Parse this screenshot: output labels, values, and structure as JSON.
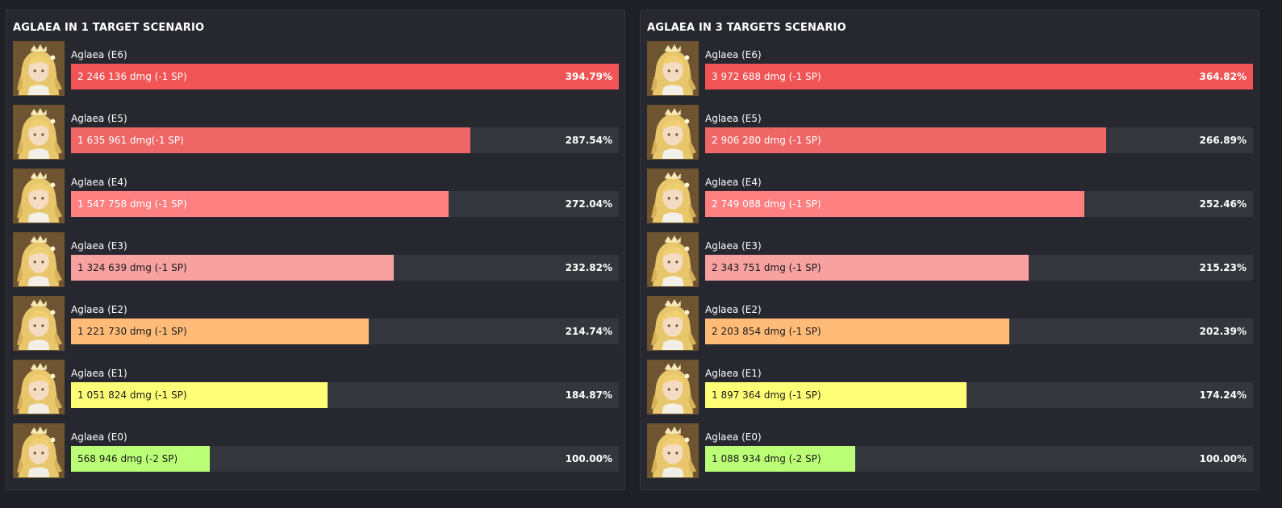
{
  "chart_data": [
    {
      "type": "bar",
      "orientation": "horizontal",
      "title": "AGLAEA IN 1 TARGET SCENARIO",
      "categories": [
        "Aglaea (E6)",
        "Aglaea (E5)",
        "Aglaea (E4)",
        "Aglaea (E3)",
        "Aglaea (E2)",
        "Aglaea (E1)",
        "Aglaea (E0)"
      ],
      "values": [
        2246136,
        1635961,
        1547758,
        1324639,
        1221730,
        1051824,
        568946
      ],
      "value_labels": [
        "2 246 136 dmg (-1 SP)",
        "1 635 961 dmg(-1 SP)",
        "1 547 758 dmg (-1 SP)",
        "1 324 639 dmg (-1 SP)",
        "1 221 730 dmg (-1 SP)",
        "1 051 824 dmg (-1 SP)",
        "568 946 dmg (-2 SP)"
      ],
      "percent_labels": [
        "394.79%",
        "287.54%",
        "272.04%",
        "232.82%",
        "214.74%",
        "184.87%",
        "100.00%"
      ],
      "xlim": [
        0,
        2246136
      ],
      "colors": [
        "#f05454",
        "#ee6666",
        "#ff8080",
        "#f7a1a1",
        "#ffbb77",
        "#ffff77",
        "#bbff77"
      ]
    },
    {
      "type": "bar",
      "orientation": "horizontal",
      "title": "AGLAEA IN 3 TARGETS SCENARIO",
      "categories": [
        "Aglaea (E6)",
        "Aglaea (E5)",
        "Aglaea (E4)",
        "Aglaea (E3)",
        "Aglaea (E2)",
        "Aglaea (E1)",
        "Aglaea (E0)"
      ],
      "values": [
        3972688,
        2906280,
        2749088,
        2343751,
        2203854,
        1897364,
        1088934
      ],
      "value_labels": [
        "3 972 688 dmg (-1 SP)",
        "2 906 280 dmg (-1 SP)",
        "2 749 088 dmg (-1 SP)",
        "2 343 751 dmg (-1 SP)",
        "2 203 854 dmg (-1 SP)",
        "1 897 364 dmg (-1 SP)",
        "1 088 934 dmg (-2 SP)"
      ],
      "percent_labels": [
        "364.82%",
        "266.89%",
        "252.46%",
        "215.23%",
        "202.39%",
        "174.24%",
        "100.00%"
      ],
      "xlim": [
        0,
        3972688
      ],
      "colors": [
        "#f05454",
        "#ee6666",
        "#ff8080",
        "#f7a1a1",
        "#ffbb77",
        "#ffff77",
        "#bbff77"
      ]
    }
  ]
}
